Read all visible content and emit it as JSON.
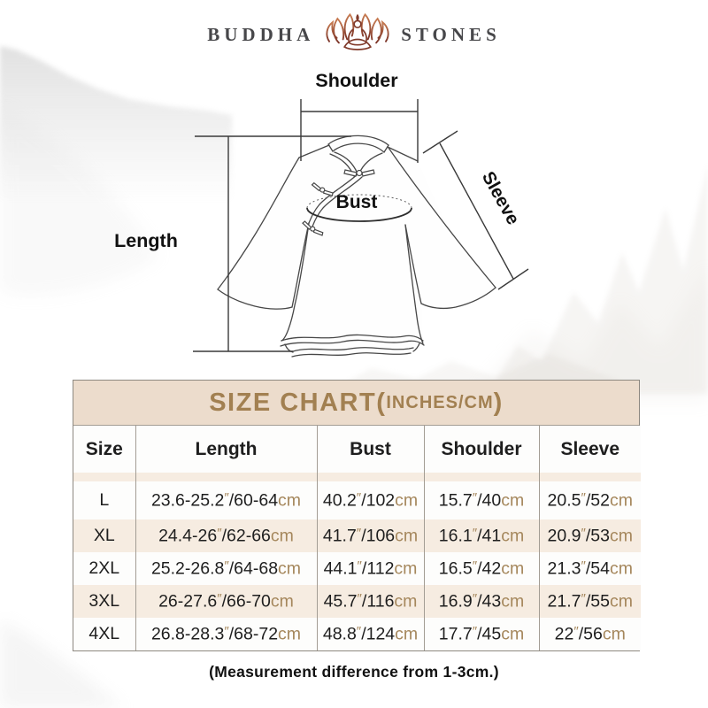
{
  "brand": {
    "word_left": "BUDDHA",
    "word_right": "STONES"
  },
  "diagram": {
    "shoulder_label": "Shoulder",
    "bust_label": "Bust",
    "length_label": "Length",
    "sleeve_label": "Sleeve"
  },
  "size_chart": {
    "title": "SIZE CHART",
    "paren_open": "(",
    "units_note": "INCHES/CM",
    "paren_close": ")",
    "columns": [
      "Size",
      "Length",
      "Bust",
      "Shoulder",
      "Sleeve"
    ],
    "rows": [
      [
        "L",
        "23.6-25.2″/60-64cm",
        "40.2″/102cm",
        "15.7″/40cm",
        "20.5″/52cm"
      ],
      [
        "XL",
        "24.4-26″/62-66cm",
        "41.7″/106cm",
        "16.1″/41cm",
        "20.9″/53cm"
      ],
      [
        "2XL",
        "25.2-26.8″/64-68cm",
        "44.1″/112cm",
        "16.5″/42cm",
        "21.3″/54cm"
      ],
      [
        "3XL",
        "26-27.6″/66-70cm",
        "45.7″/116cm",
        "16.9″/43cm",
        "21.7″/55cm"
      ],
      [
        "4XL",
        "26.8-28.3″/68-72cm",
        "48.8″/124cm",
        "17.7″/45cm",
        "22″/56cm"
      ]
    ]
  },
  "footer_note": "(Measurement difference from 1-3cm.)",
  "colors": {
    "accent": "#a28051",
    "unit_text": "#a5875c",
    "title_band_bg": "#ecdccc",
    "row_beige": "#f6ece1",
    "row_white": "#fdfdfc",
    "grid_line": "#a39d94",
    "logo_gradient_dark": "#7a3226",
    "logo_gradient_light": "#c87c52",
    "logo_text": "#47474a"
  }
}
